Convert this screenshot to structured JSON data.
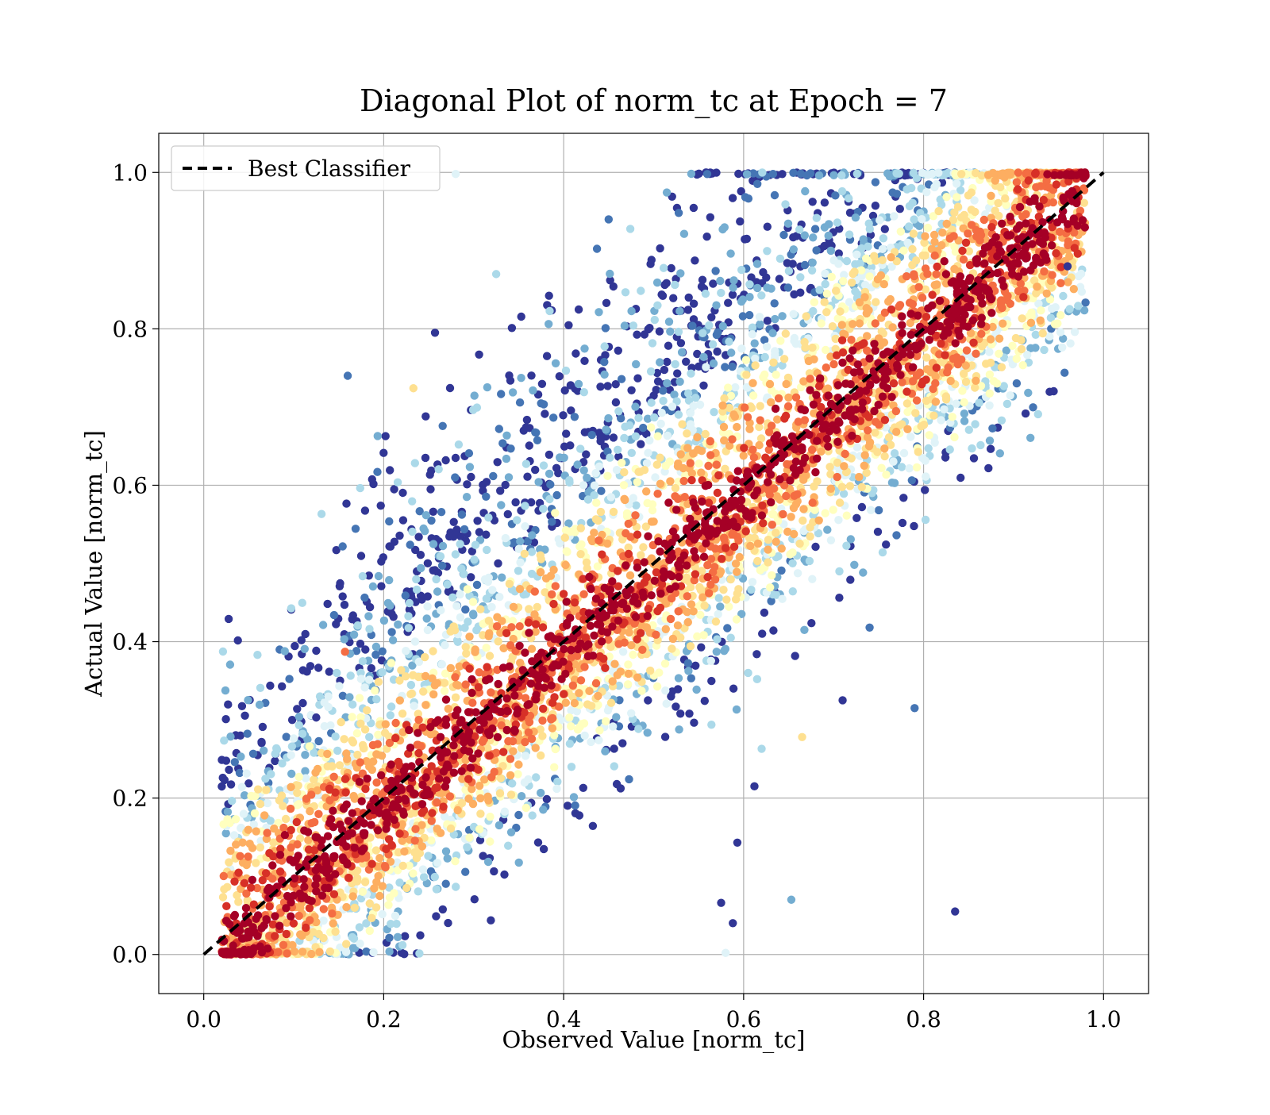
{
  "chart_data": {
    "type": "scatter",
    "title": "Diagonal Plot of norm_tc at Epoch = 7",
    "xlabel": "Observed Value [norm_tc]",
    "ylabel": "Actual Value [norm_tc]",
    "xlim": [
      -0.05,
      1.05
    ],
    "ylim": [
      -0.05,
      1.05
    ],
    "xticks": [
      "0.0",
      "0.2",
      "0.4",
      "0.6",
      "0.8",
      "1.0"
    ],
    "yticks": [
      "0.0",
      "0.2",
      "0.4",
      "0.6",
      "0.8",
      "1.0"
    ],
    "grid": true,
    "legend": {
      "location": "top-left",
      "entries": [
        "Best Classifier"
      ]
    },
    "reference_line": {
      "name": "Best Classifier",
      "x": [
        0,
        1
      ],
      "y": [
        0,
        1
      ],
      "style": "dashed",
      "color": "#000000"
    },
    "colormap": [
      "#313695",
      "#4575b4",
      "#74add1",
      "#abd9e9",
      "#e0f3f8",
      "#ffffbf",
      "#fee090",
      "#fdae61",
      "#f46d43",
      "#d73027",
      "#a50026"
    ],
    "point_count_approx": 20000,
    "distribution": "dense band of points along the diagonal y = x, with warm colors (yellow/orange/red) concentrated near the diagonal and cool colors (blue) spreading above the diagonal at low-to-mid observed values and below it toward the lower region; points bounded roughly by y between x-0.25 and x+0.45",
    "outliers": [
      {
        "x": 0.835,
        "y": 0.055,
        "c": "#313695"
      },
      {
        "x": 0.79,
        "y": 0.315,
        "c": "#4575b4"
      },
      {
        "x": 0.71,
        "y": 0.325,
        "c": "#313695"
      },
      {
        "x": 0.74,
        "y": 0.418,
        "c": "#4575b4"
      },
      {
        "x": 0.665,
        "y": 0.278,
        "c": "#fee090"
      },
      {
        "x": 0.16,
        "y": 0.74,
        "c": "#4575b4"
      },
      {
        "x": 0.193,
        "y": 0.617,
        "c": "#4575b4"
      },
      {
        "x": 0.233,
        "y": 0.724,
        "c": "#fee090"
      },
      {
        "x": 0.28,
        "y": 0.998,
        "c": "#e0f3f8"
      },
      {
        "x": 0.62,
        "y": 0.263,
        "c": "#abd9e9"
      },
      {
        "x": 0.612,
        "y": 0.215,
        "c": "#313695"
      },
      {
        "x": 0.593,
        "y": 0.143,
        "c": "#313695"
      },
      {
        "x": 0.653,
        "y": 0.07,
        "c": "#74add1"
      },
      {
        "x": 0.575,
        "y": 0.066,
        "c": "#313695"
      },
      {
        "x": 0.588,
        "y": 0.04,
        "c": "#313695"
      },
      {
        "x": 0.58,
        "y": 0.002,
        "c": "#e0f3f8"
      },
      {
        "x": 0.157,
        "y": 0.387,
        "c": "#f46d43"
      },
      {
        "x": 0.125,
        "y": 0.303,
        "c": "#313695"
      },
      {
        "x": 0.45,
        "y": 0.94,
        "c": "#4575b4"
      },
      {
        "x": 0.257,
        "y": 0.795,
        "c": "#313695"
      },
      {
        "x": 0.325,
        "y": 0.87,
        "c": "#abd9e9"
      },
      {
        "x": 0.615,
        "y": 0.352,
        "c": "#abd9e9"
      },
      {
        "x": 0.605,
        "y": 0.36,
        "c": "#abd9e9"
      },
      {
        "x": 0.96,
        "y": 0.88,
        "c": "#313695"
      }
    ]
  }
}
